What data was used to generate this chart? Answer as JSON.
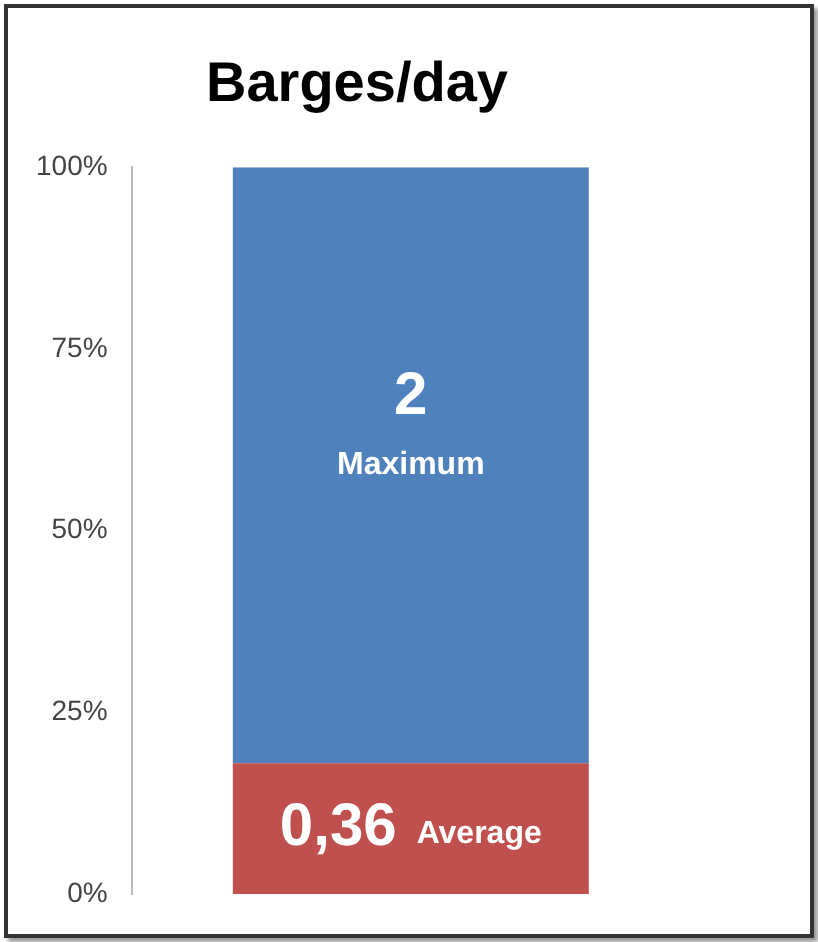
{
  "chart_data": {
    "type": "bar",
    "title": "Barges/day",
    "stacked": true,
    "categories": [
      null
    ],
    "series": [
      {
        "name": "Average",
        "color": "#c0504d",
        "values": [
          18
        ]
      },
      {
        "name": "Maximum",
        "color": "#4f81bd",
        "values": [
          82
        ]
      }
    ],
    "annotations": [
      "0,36",
      "2"
    ],
    "ylim": [
      0,
      100
    ],
    "yticks": [
      {
        "value": 0,
        "label": "0%"
      },
      {
        "value": 25,
        "label": "25%"
      },
      {
        "value": 50,
        "label": "50%"
      },
      {
        "value": 75,
        "label": "75%"
      },
      {
        "value": 100,
        "label": "100%"
      }
    ],
    "grid": false,
    "legend": false
  }
}
